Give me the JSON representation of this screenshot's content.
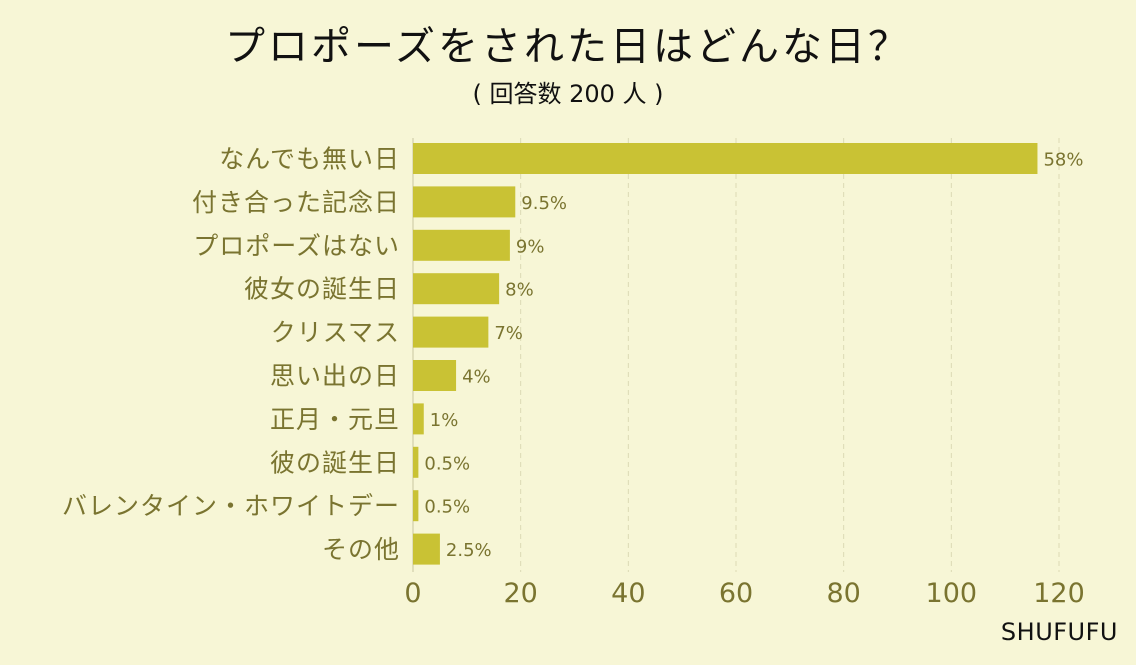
{
  "title": "プロポーズをされた日はどんな日？",
  "subtitle": "( 回答数 200 人 )",
  "brand": "SHUFUFU",
  "chart_data": {
    "type": "bar",
    "orientation": "horizontal",
    "categories": [
      "なんでも無い日",
      "付き合った記念日",
      "プロポーズはない",
      "彼女の誕生日",
      "クリスマス",
      "思い出の日",
      "正月・元旦",
      "彼の誕生日",
      "バレンタイン・ホワイトデー",
      "その他"
    ],
    "values": [
      116,
      19,
      18,
      16,
      14,
      8,
      2,
      1,
      1,
      5
    ],
    "data_labels": [
      "58%",
      "9.5%",
      "9%",
      "8%",
      "7%",
      "4%",
      "1%",
      "0.5%",
      "0.5%",
      "2.5%"
    ],
    "xlim": [
      0,
      120
    ],
    "xticks": [
      0,
      20,
      40,
      60,
      80,
      100,
      120
    ],
    "grid": "vertical dashed",
    "bar_color": "#c9c234",
    "label_color": "#7a7430"
  }
}
